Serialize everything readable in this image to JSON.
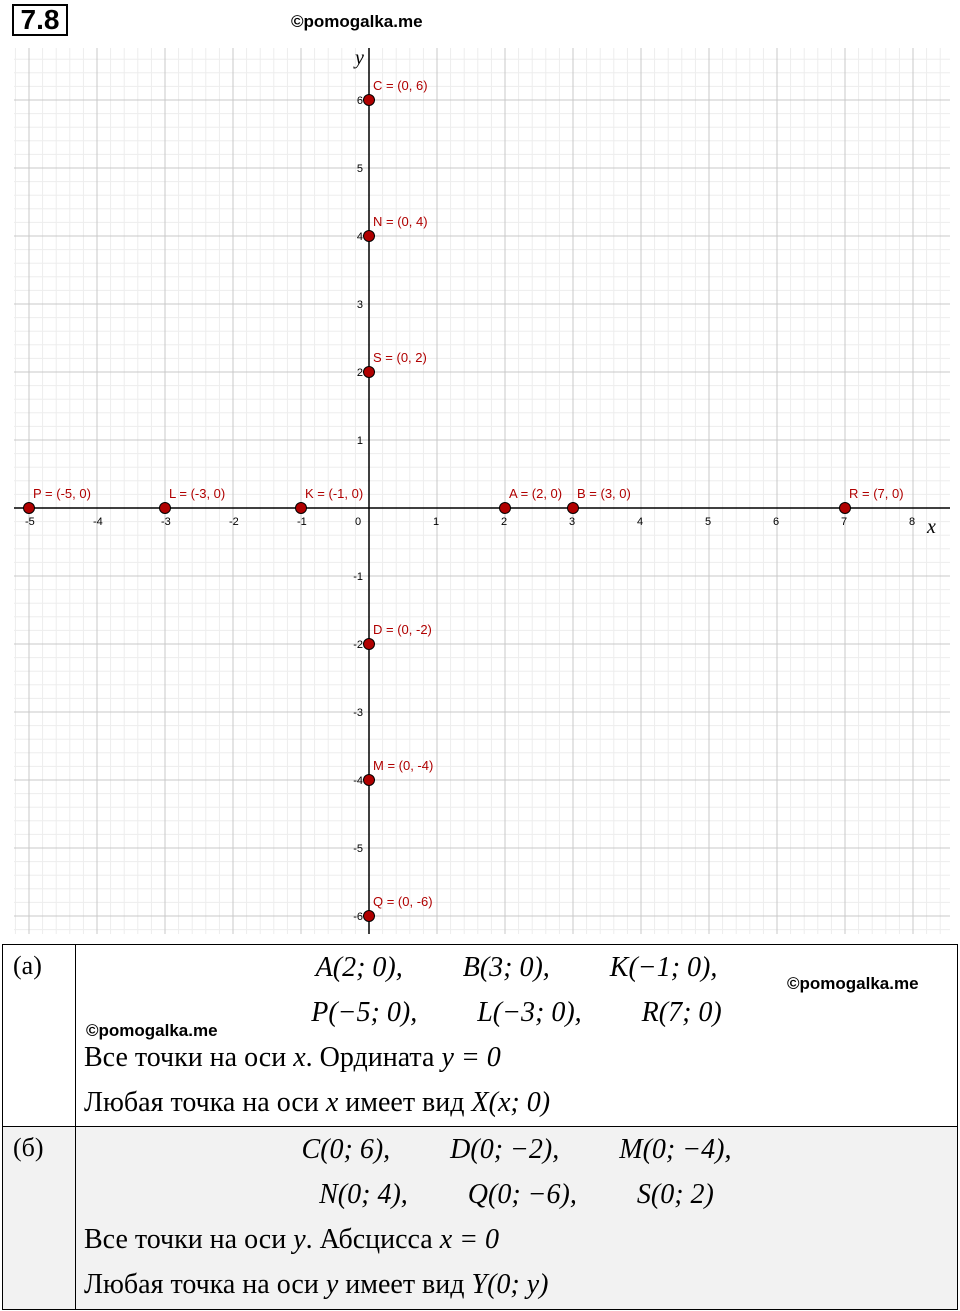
{
  "problem_number": "7.8",
  "watermarks": {
    "top": "©pomogalka.me",
    "a_right": "©pomogalka.me",
    "a_left": "©pomogalka.me"
  },
  "graph": {
    "x_axis_label": "x",
    "y_axis_label": "y",
    "x_ticks": [
      "-5",
      "-4",
      "-3",
      "-2",
      "-1",
      "0",
      "1",
      "2",
      "3",
      "4",
      "5",
      "6",
      "7",
      "8"
    ],
    "y_ticks": [
      "6",
      "5",
      "4",
      "3",
      "2",
      "1",
      "-1",
      "-2",
      "-3",
      "-4",
      "-5",
      "-6"
    ],
    "point_color": "#b00000",
    "points": [
      {
        "label": "P = (-5, 0)",
        "x": -5,
        "y": 0
      },
      {
        "label": "L = (-3, 0)",
        "x": -3,
        "y": 0
      },
      {
        "label": "K = (-1, 0)",
        "x": -1,
        "y": 0
      },
      {
        "label": "A = (2, 0)",
        "x": 2,
        "y": 0
      },
      {
        "label": "B = (3, 0)",
        "x": 3,
        "y": 0
      },
      {
        "label": "R = (7, 0)",
        "x": 7,
        "y": 0
      },
      {
        "label": "C = (0, 6)",
        "x": 0,
        "y": 6
      },
      {
        "label": "N = (0, 4)",
        "x": 0,
        "y": 4
      },
      {
        "label": "S = (0, 2)",
        "x": 0,
        "y": 2
      },
      {
        "label": "D = (0, -2)",
        "x": 0,
        "y": -2
      },
      {
        "label": "M = (0, -4)",
        "x": 0,
        "y": -4
      },
      {
        "label": "Q = (0, -6)",
        "x": 0,
        "y": -6
      }
    ]
  },
  "answers": {
    "a": {
      "label": "(а)",
      "line1": [
        "A(2; 0),",
        "B(3; 0),",
        "K(−1; 0),"
      ],
      "line2": [
        "P(−5; 0),",
        "L(−3; 0),",
        "R(7; 0)"
      ],
      "text1_prefix": "Все точки на оси ",
      "text1_var": "x",
      "text1_mid": ". Ордината ",
      "text1_eq": "y = 0",
      "text2_prefix": "Любая точка на оси ",
      "text2_var": "x",
      "text2_mid": " имеет вид ",
      "text2_form": "X(x; 0)"
    },
    "b": {
      "label": "(б)",
      "line1": [
        "C(0; 6),",
        "D(0; −2),",
        "M(0; −4),"
      ],
      "line2": [
        "N(0; 4),",
        "Q(0; −6),",
        "S(0; 2)"
      ],
      "text1_prefix": "Все точки на оси ",
      "text1_var": "y",
      "text1_mid": ". Абсцисса ",
      "text1_eq": "x = 0",
      "text2_prefix": "Любая точка на оси ",
      "text2_var": "y",
      "text2_mid": " имеет вид ",
      "text2_form": "Y(0; y)"
    }
  }
}
